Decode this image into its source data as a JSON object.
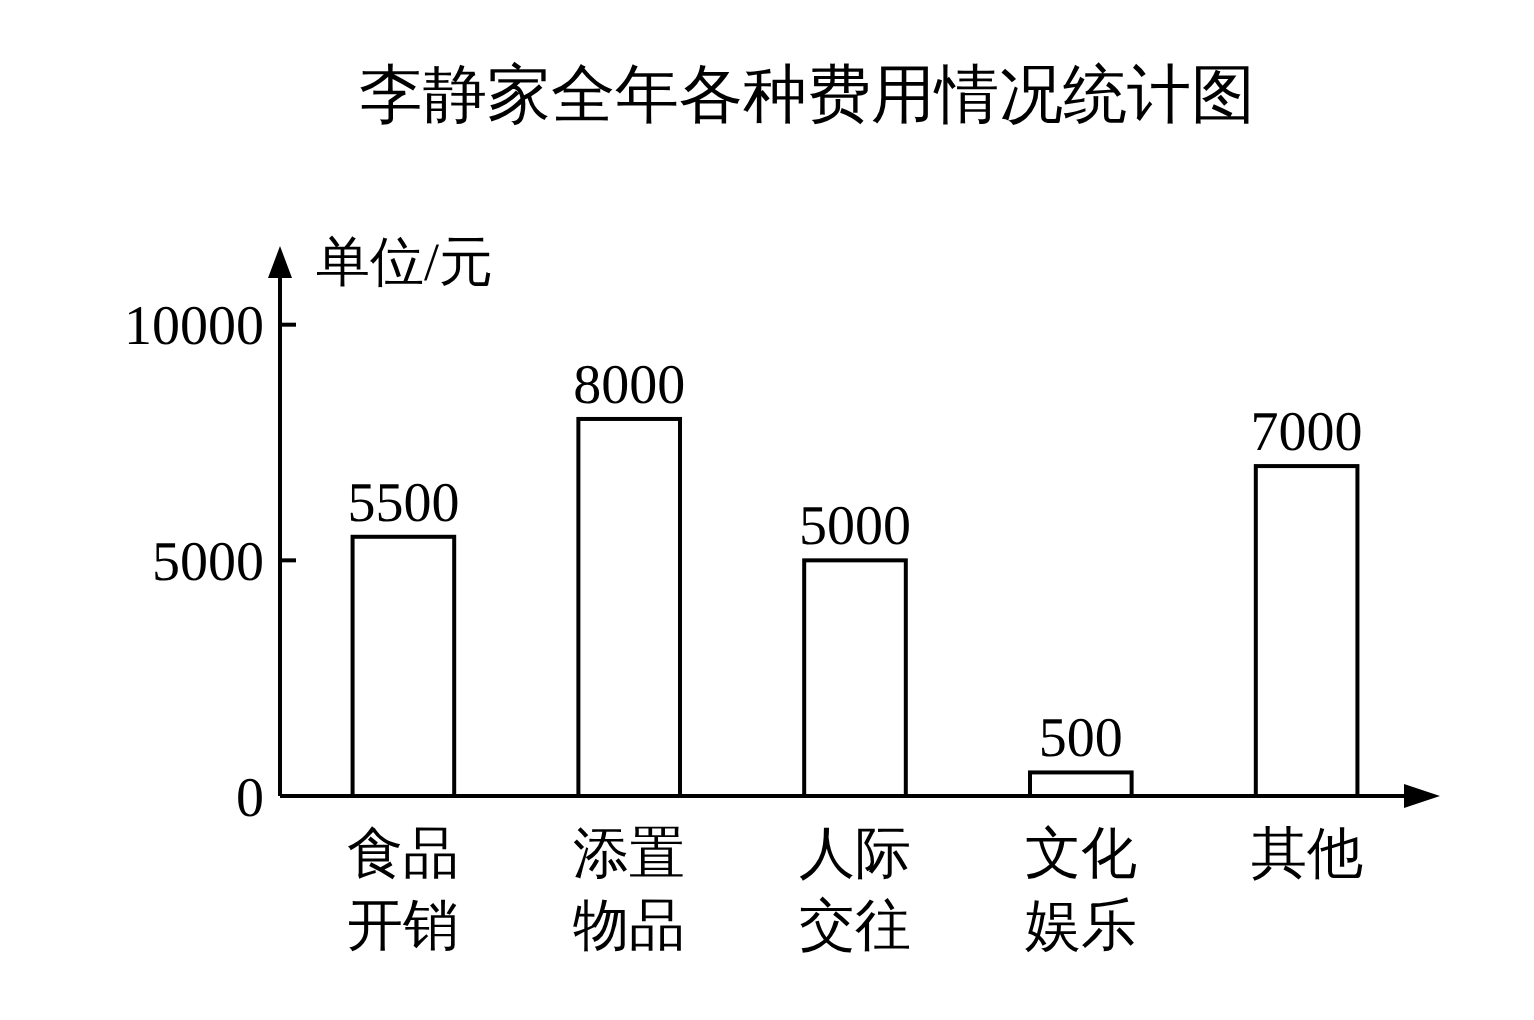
{
  "chart_data": {
    "type": "bar",
    "title": "李静家全年各种费用情况统计图",
    "ylabel": "单位/元",
    "categories": [
      "食品开销",
      "添置物品",
      "人际交往",
      "文化娱乐",
      "其他"
    ],
    "values": [
      5500,
      8000,
      5000,
      500,
      7000
    ],
    "ylim": [
      0,
      11500
    ],
    "yticks": [
      0,
      5000,
      10000
    ],
    "data_labels": true
  }
}
